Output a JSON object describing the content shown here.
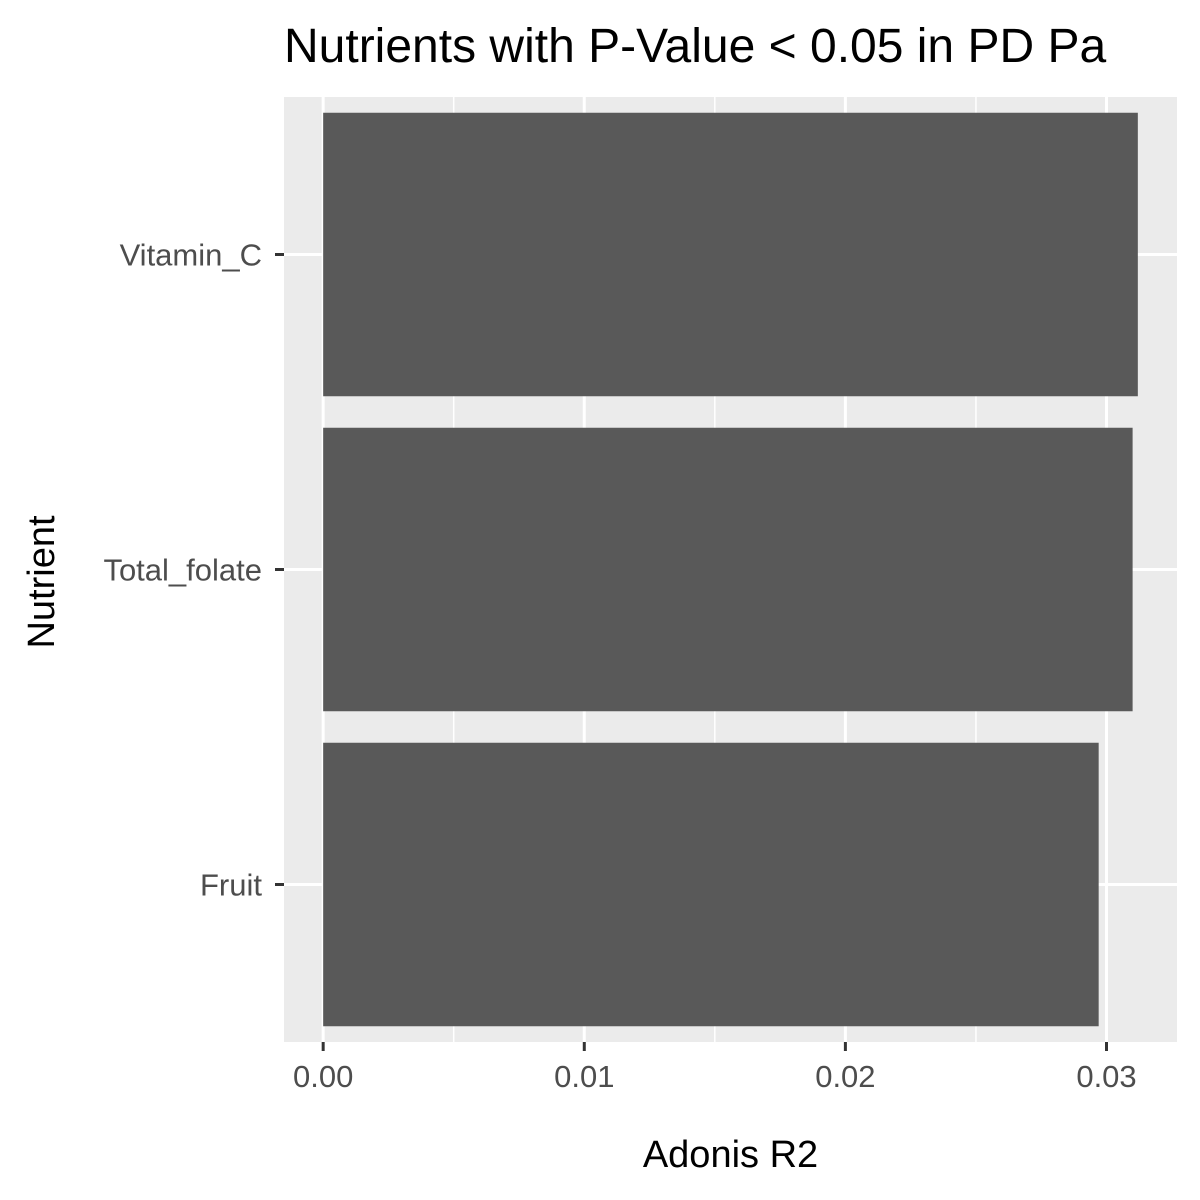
{
  "chart_data": {
    "type": "bar",
    "orientation": "horizontal",
    "title": "Nutrients with P-Value < 0.05 in PD Pa",
    "xlabel": "Adonis R2",
    "ylabel": "Nutrient",
    "categories": [
      "Vitamin_C",
      "Total_folate",
      "Fruit"
    ],
    "values": [
      0.0312,
      0.031,
      0.0297
    ],
    "xlim": [
      -0.0015,
      0.0327
    ],
    "x_ticks": [
      0.0,
      0.01,
      0.02,
      0.03
    ],
    "x_tick_labels": [
      "0.00",
      "0.01",
      "0.02",
      "0.03"
    ],
    "grid": true,
    "colors": {
      "bar": "#595959",
      "panel": "#ebebeb",
      "grid": "#ffffff",
      "tick": "#333333"
    }
  }
}
